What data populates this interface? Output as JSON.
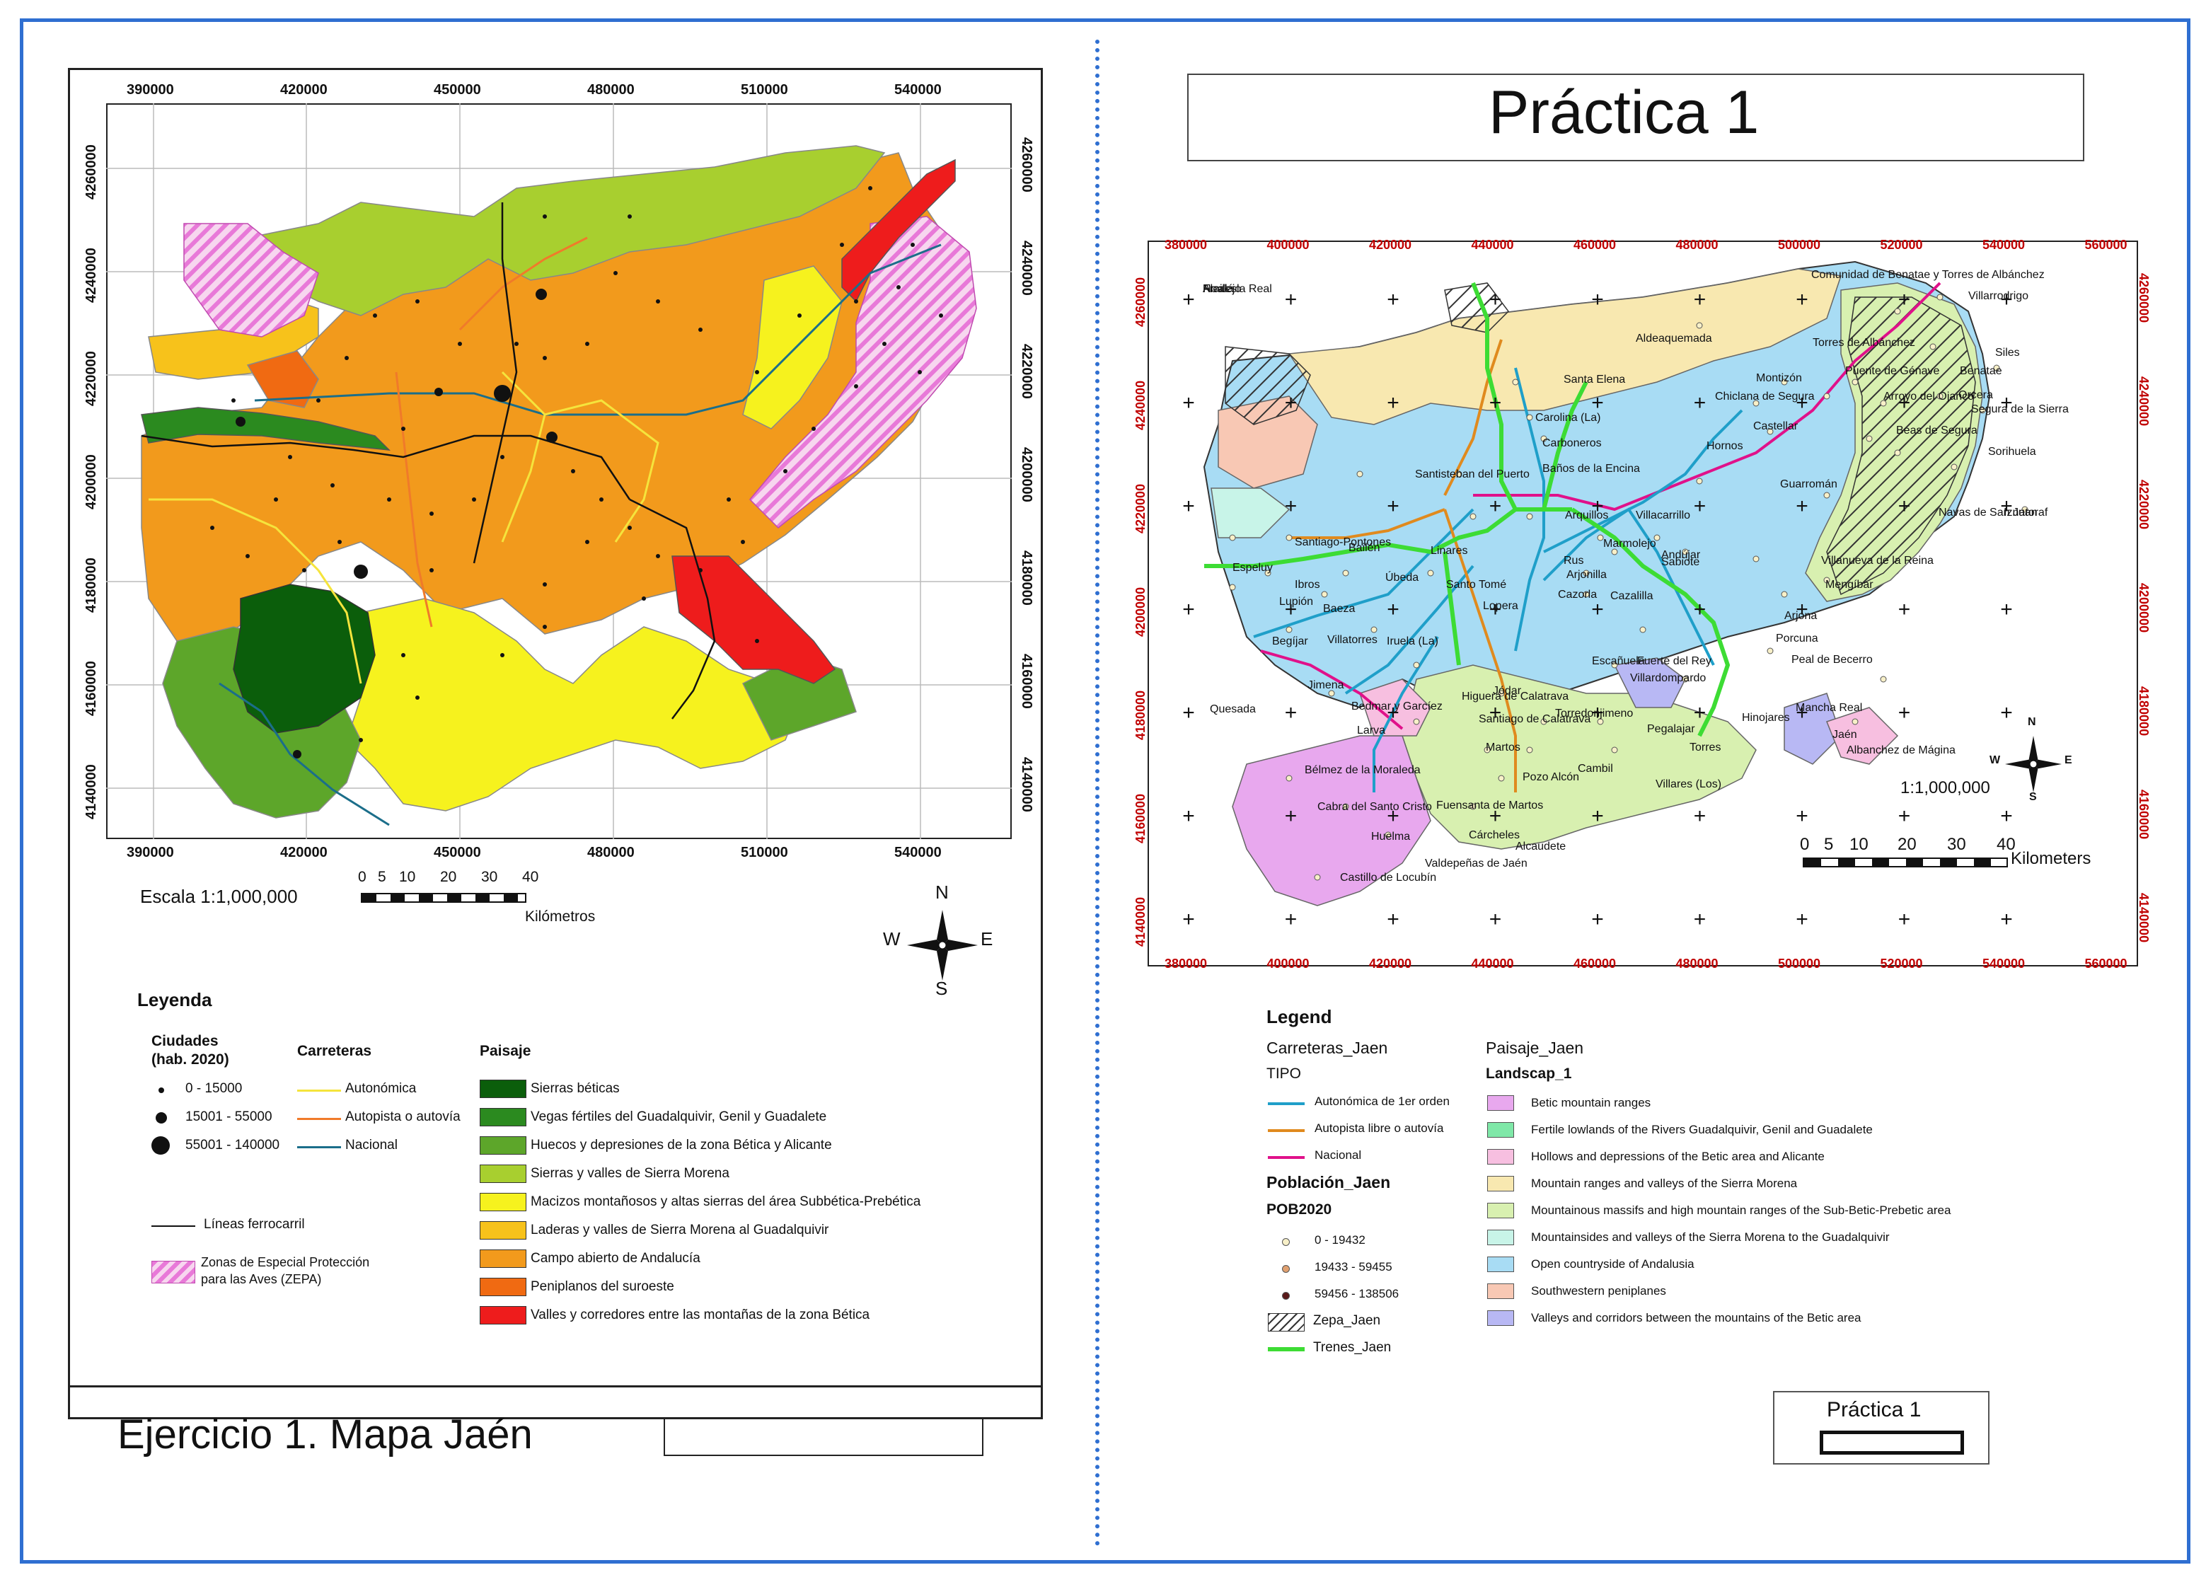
{
  "left_map": {
    "x_ticks": [
      "390000",
      "420000",
      "450000",
      "480000",
      "510000",
      "540000"
    ],
    "y_ticks": [
      "4260000",
      "4240000",
      "4220000",
      "4200000",
      "4180000",
      "4160000",
      "4140000"
    ],
    "scale_text": "Escala 1:1,000,000",
    "scale_numbers": [
      "0",
      "5",
      "10",
      "20",
      "30",
      "40"
    ],
    "scale_unit": "Kilómetros",
    "compass": {
      "n": "N",
      "s": "S",
      "e": "E",
      "w": "W"
    },
    "legend": {
      "title": "Leyenda",
      "cities_title_line1": "Ciudades",
      "cities_title_line2": "(hab. 2020)",
      "cities": [
        "0 - 15000",
        "15001 - 55000",
        "55001 - 140000"
      ],
      "roads_title": "Carreteras",
      "roads": [
        {
          "label": "Autonómica",
          "color": "#f5e43c"
        },
        {
          "label": "Autopista o autovía",
          "color": "#f07a2a"
        },
        {
          "label": "Nacional",
          "color": "#1b6e8a"
        }
      ],
      "rail": "Líneas ferrocarril",
      "zepa_line1": "Zonas de Especial Protección",
      "zepa_line2": "para las Aves (ZEPA)",
      "landscape_title": "Paisaje",
      "landscape": [
        {
          "label": "Sierras béticas",
          "color": "#0b5e0b"
        },
        {
          "label": "Vegas fértiles del Guadalquivir, Genil y Guadalete",
          "color": "#2b8a1f"
        },
        {
          "label": "Huecos y depresiones de la zona Bética y Alicante",
          "color": "#5da62a"
        },
        {
          "label": "Sierras y valles de Sierra Morena",
          "color": "#a8cf2f"
        },
        {
          "label": "Macizos montañosos y altas sierras del área Subbética-Prebética",
          "color": "#f6f21e"
        },
        {
          "label": "Laderas y valles de Sierra Morena al Guadalquivir",
          "color": "#f7c21b"
        },
        {
          "label": "Campo abierto de Andalucía",
          "color": "#f29a1c"
        },
        {
          "label": "Peniplanos del suroeste",
          "color": "#f06a12"
        },
        {
          "label": "Valles y corredores entre las montañas de la zona Bética",
          "color": "#ee1c1c"
        }
      ]
    },
    "title": "Ejercicio 1. Mapa Jaén"
  },
  "right_map": {
    "title": "Práctica 1",
    "x_ticks": [
      "380000",
      "400000",
      "420000",
      "440000",
      "460000",
      "480000",
      "500000",
      "520000",
      "540000",
      "560000"
    ],
    "y_ticks": [
      "4260000",
      "4240000",
      "4220000",
      "4200000",
      "4180000",
      "4160000",
      "4140000"
    ],
    "scale_text": "1:1,000,000",
    "scale_numbers": [
      "0",
      "5",
      "10",
      "20",
      "30",
      "40"
    ],
    "scale_unit": "Kilometers",
    "compass": {
      "n": "N",
      "s": "S",
      "e": "E",
      "w": "W"
    },
    "towns": [
      "Comunidad de Benatae y Torres de Albánchez",
      "Villarrodrigo",
      "Aldeaquemada",
      "Torres de Albánchez",
      "Siles",
      "Montizón",
      "Puente de Génave",
      "Benatae",
      "Santa Elena",
      "Chiclana de Segura",
      "Arroyo del Ojanco",
      "Orcera",
      "Carolina (La)",
      "Segura de la Sierra",
      "Castellar",
      "Beas de Segura",
      "Carboneros",
      "Sorihuela",
      "Hornos",
      "Santisteban del Puerto",
      "Baños de la Encina",
      "Guarromán",
      "Navas de San Juan",
      "Iznatoraf",
      "Arquillos",
      "Villacarrillo",
      "Santiago-Pontones",
      "Bailén",
      "Linares",
      "Marmolejo",
      "Andújar",
      "Espeluy",
      "Rus",
      "Sabiote",
      "Villanueva de la Reina",
      "Ibros",
      "Úbeda",
      "Santo Tomé",
      "Arjonilla",
      "Cazalilla",
      "Mengíbar",
      "Lupión",
      "Baeza",
      "Cazorla",
      "Lopera",
      "Arjona",
      "Begíjar",
      "Villatorres",
      "Iruela (La)",
      "Porcuna",
      "Escañuela",
      "Fuerte del Rey",
      "Peal de Becerro",
      "Villardompardo",
      "Jimena",
      "Jódar",
      "Quesada",
      "Bedmar y Garcíez",
      "Higuera de Calatrava",
      "Mancha Real",
      "Santiago de Calatrava",
      "Torredonjimeno",
      "Jaén",
      "Larva",
      "Pegalajar",
      "Albanchez de Mágina",
      "Hinojares",
      "Martos",
      "Torres",
      "Bélmez de la Moraleda",
      "Pozo Alcón",
      "Villares (Los)",
      "Cabra del Santo Cristo",
      "Fuensanta de Martos",
      "Cambil",
      "Cárcheles",
      "Huelma",
      "Alcaudete",
      "Valdepeñas de Jaén",
      "Castillo de Locubín",
      "Noalejo",
      "Frailes",
      "Alcalá la Real"
    ],
    "legend": {
      "title": "Legend",
      "roads_title": "Carreteras_Jaen",
      "roads_sub": "TIPO",
      "roads": [
        {
          "label": "Autonómica de 1er orden",
          "color": "#1f9fc9"
        },
        {
          "label": "Autopista libre o autovía",
          "color": "#e08a1e"
        },
        {
          "label": "Nacional",
          "color": "#e0118a"
        }
      ],
      "pop_title": "Población_Jaen",
      "pop_sub": "POB2020",
      "pop": [
        "0 - 19432",
        "19433 - 59455",
        "59456 - 138506"
      ],
      "zepa": "Zepa_Jaen",
      "trains": "Trenes_Jaen",
      "landscape_title": "Paisaje_Jaen",
      "landscape_sub": "Landscap_1",
      "landscape": [
        {
          "label": "Betic mountain ranges",
          "color": "#e8a8ee"
        },
        {
          "label": "Fertile lowlands of the Rivers Guadalquivir, Genil and Guadalete",
          "color": "#7fe8a8"
        },
        {
          "label": "Hollows and depressions of the Betic area and Alicante",
          "color": "#f7bfe0"
        },
        {
          "label": "Mountain ranges and valleys of the Sierra Morena",
          "color": "#f8e8b0"
        },
        {
          "label": "Mountainous massifs and high mountain ranges of the Sub-Betic-Prebetic area",
          "color": "#d8f0b0"
        },
        {
          "label": "Mountainsides and valleys of the Sierra Morena to the Guadalquivir",
          "color": "#c8f4e8"
        },
        {
          "label": "Open countryside of Andalusia",
          "color": "#a8dcf4"
        },
        {
          "label": "Southwestern peniplanes",
          "color": "#f8c8b4"
        },
        {
          "label": "Valleys and corridors between the mountains of the Betic area",
          "color": "#b8b8f4"
        }
      ]
    },
    "badge": "Práctica 1"
  }
}
